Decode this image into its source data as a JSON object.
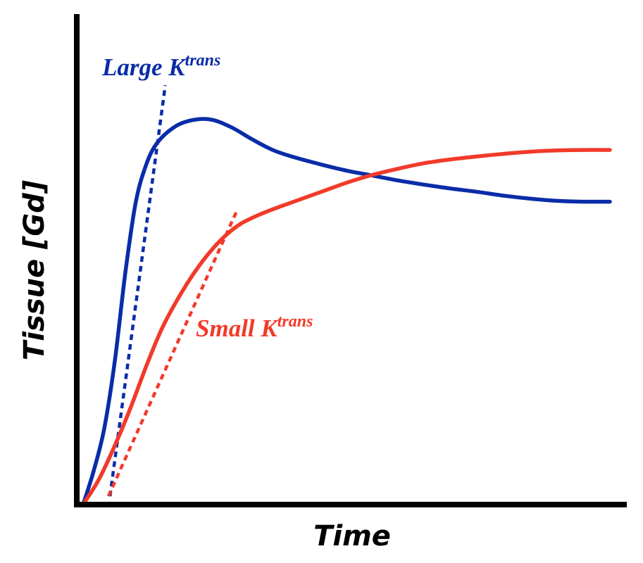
{
  "chart_data": {
    "type": "line",
    "title": "",
    "xlabel": "Time",
    "ylabel": "Tissue [Gd]",
    "grid": false,
    "legend": "none",
    "xlim": [
      0,
      100
    ],
    "ylim": [
      0,
      100
    ],
    "series": [
      {
        "label_main": "Large K",
        "label_sup": "trans",
        "color": "#0a2ca8",
        "line_style": "solid",
        "x": [
          0,
          2,
          4,
          6,
          8,
          10,
          12,
          14,
          17,
          20,
          24,
          28,
          32,
          36,
          40,
          45,
          50,
          55,
          60,
          65,
          70,
          75,
          80,
          85,
          90,
          95,
          100
        ],
        "y": [
          0,
          8,
          18,
          34,
          55,
          72,
          81,
          86,
          89.6,
          91.3,
          91.7,
          89.9,
          87.0,
          84.4,
          82.7,
          81.0,
          79.5,
          78.3,
          77.1,
          76.1,
          75.2,
          74.4,
          73.5,
          72.8,
          72.3,
          72.1,
          72.1
        ]
      },
      {
        "label_main": "Small K",
        "label_sup": "trans",
        "color": "#f23a2a",
        "line_style": "solid",
        "x": [
          0,
          3,
          6,
          9,
          12,
          15,
          18,
          21,
          24,
          27,
          30,
          34,
          38,
          42,
          46,
          50,
          55,
          60,
          65,
          70,
          75,
          80,
          85,
          90,
          95,
          100
        ],
        "y": [
          0,
          6,
          14,
          23,
          33,
          42,
          49,
          55,
          60,
          64,
          66.9,
          69.3,
          71.2,
          73.0,
          74.8,
          76.6,
          78.5,
          80.0,
          81.3,
          82.2,
          82.9,
          83.5,
          84.0,
          84.3,
          84.4,
          84.4
        ]
      }
    ],
    "tangents": [
      {
        "series": "Large K",
        "color": "#0a2ca8",
        "line_style": "dotted",
        "x": [
          5.1,
          15.6
        ],
        "y": [
          2.0,
          99.8
        ]
      },
      {
        "series": "Small K",
        "color": "#f23a2a",
        "line_style": "dotted",
        "x": [
          4.8,
          29.1
        ],
        "y": [
          2.0,
          69.7
        ]
      }
    ]
  }
}
